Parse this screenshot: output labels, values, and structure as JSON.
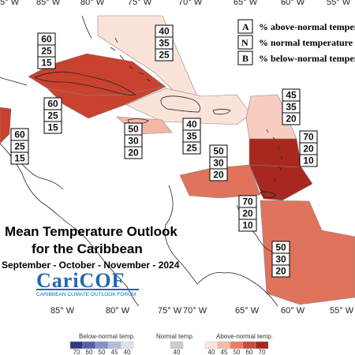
{
  "map": {
    "lon_labels": [
      "85° W",
      "80° W",
      "75° W",
      "70° W",
      "65° W",
      "60° W",
      "55° W"
    ],
    "title_lines": [
      "Mean Temperature Outlook",
      "for the Caribbean"
    ],
    "period": "September - October - November - 2024",
    "logo": {
      "text": "CariCOF",
      "subtitle": "CARIBBEAN CLIMATE OUTLOOK FORUM"
    }
  },
  "legend": {
    "rows": [
      {
        "letter": "A",
        "label": "% above-normal temperature"
      },
      {
        "letter": "N",
        "label": "% normal temperature"
      },
      {
        "letter": "B",
        "label": "% below-normal temperature"
      }
    ]
  },
  "regions": [
    {
      "id": "bahamas",
      "values": [
        "40",
        "35",
        "25"
      ],
      "color": "#fce3da"
    },
    {
      "id": "cuba-west",
      "values": [
        "60",
        "25",
        "15"
      ],
      "color": "#c9422f"
    },
    {
      "id": "cuba-east",
      "values": [
        "60",
        "25",
        "15"
      ],
      "color": "#c9422f"
    },
    {
      "id": "belize",
      "values": [
        "60",
        "25",
        "15"
      ],
      "color": "#c9422f"
    },
    {
      "id": "hispaniola",
      "values": [
        "40",
        "35",
        "25"
      ],
      "color": "#fce3da"
    },
    {
      "id": "jamaica",
      "values": [
        "50",
        "30",
        "20"
      ],
      "color": "#f3b7a4"
    },
    {
      "id": "leeward",
      "values": [
        "45",
        "35",
        "20"
      ],
      "color": "#f7cdbf"
    },
    {
      "id": "abc-islands",
      "values": [
        "50",
        "30",
        "20"
      ],
      "color": "#e0735c"
    },
    {
      "id": "windward",
      "values": [
        "70",
        "20",
        "10"
      ],
      "color": "#a82820"
    },
    {
      "id": "trinidad",
      "values": [
        "70",
        "20",
        "10"
      ],
      "color": "#a82820"
    },
    {
      "id": "guianas",
      "values": [
        "50",
        "30",
        "20"
      ],
      "color": "#e0735c"
    }
  ],
  "colorbar": {
    "below": {
      "title": "Below-normal temp.",
      "ticks": [
        "70",
        "60",
        "50",
        "45",
        "40"
      ],
      "colors": [
        "#2c3b80",
        "#5262aa",
        "#8391c6",
        "#b3bcdc",
        "#dde2f0"
      ]
    },
    "normal": {
      "title": "Normal temp.",
      "ticks": [
        "40"
      ],
      "colors": [
        "#cccccc"
      ]
    },
    "above": {
      "title": "Above-normal temp.",
      "ticks": [
        "40",
        "45",
        "50",
        "60",
        "70"
      ],
      "colors": [
        "#fde5dc",
        "#f6b9a5",
        "#e97c63",
        "#cc4a35",
        "#a3261f"
      ]
    }
  }
}
